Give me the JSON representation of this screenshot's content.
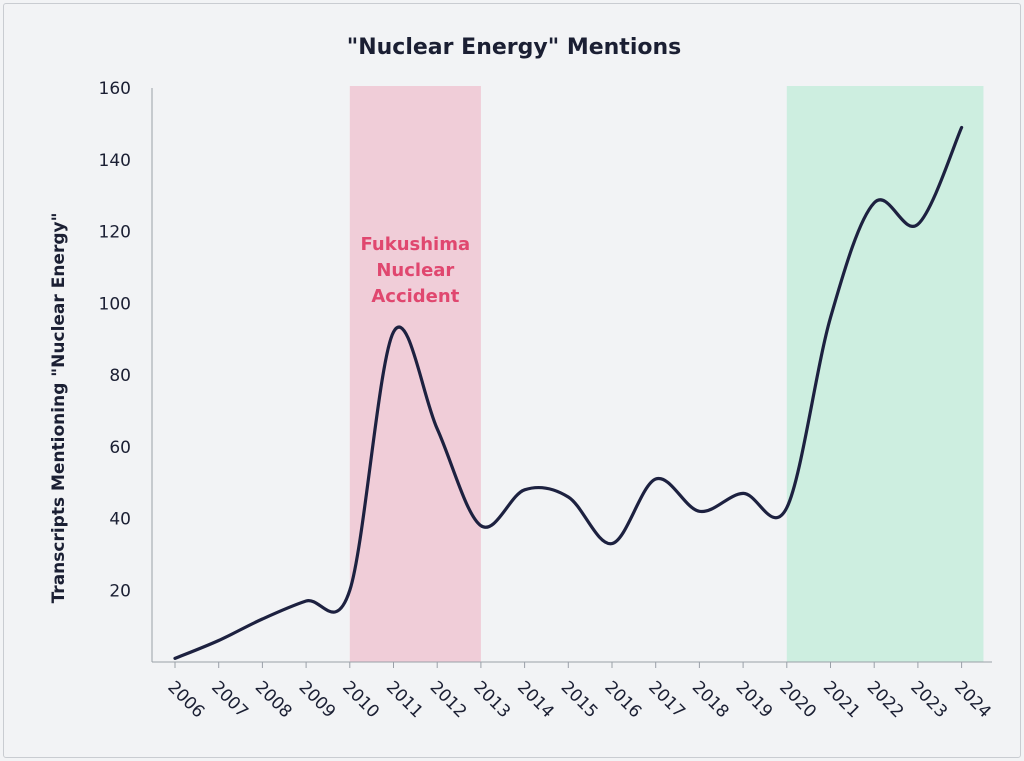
{
  "chart_data": {
    "type": "line",
    "title": "\"Nuclear Energy\" Mentions",
    "xlabel": "",
    "ylabel": "Transcripts Mentioning \"Nuclear Energy\"",
    "x": [
      "2006",
      "2007",
      "2008",
      "2009",
      "2010",
      "2011",
      "2012",
      "2013",
      "2014",
      "2015",
      "2016",
      "2017",
      "2018",
      "2019",
      "2020",
      "2021",
      "2022",
      "2023",
      "2024"
    ],
    "series": [
      {
        "name": "Nuclear Energy mentions",
        "values": [
          1,
          6,
          12,
          17,
          20,
          92,
          65,
          38,
          48,
          46,
          33,
          51,
          42,
          47,
          43,
          96,
          128,
          122,
          149
        ]
      }
    ],
    "ylim": [
      0,
      160
    ],
    "yticks": [
      20,
      40,
      60,
      80,
      100,
      120,
      140,
      160
    ],
    "grid": false,
    "highlight_regions": [
      {
        "from": "2010",
        "to": "2013",
        "color": "#f0cdd8",
        "label_lines": [
          "Fukushima",
          "Nuclear",
          "Accident"
        ]
      },
      {
        "from": "2020",
        "to": "2024.5",
        "color": "#cdeee0"
      }
    ],
    "line_color": "#1d2140",
    "annotation_color": "#e0476f"
  }
}
